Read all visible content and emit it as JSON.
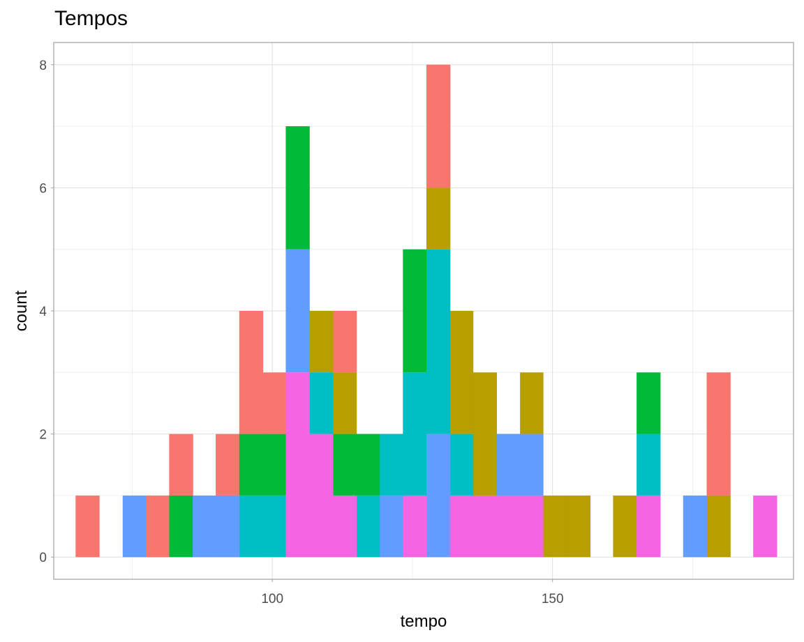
{
  "chart_data": {
    "type": "bar",
    "title": "Tempos",
    "xlabel": "tempo",
    "ylabel": "count",
    "xlim": [
      61,
      193
    ],
    "ylim": [
      -0.36,
      8.36
    ],
    "x_ticks": [
      100,
      150
    ],
    "y_ticks": [
      0,
      2,
      4,
      6,
      8
    ],
    "x_minor_ticks": [
      75,
      125,
      175
    ],
    "y_minor_ticks": [
      1,
      3,
      5,
      7
    ],
    "grid": true,
    "legend": "none",
    "bin_width": 4.17,
    "series": [
      {
        "color": "#F8766D",
        "bars": [
          {
            "x0": 64.9,
            "x1": 69.1,
            "y0": 0,
            "y1": 1
          },
          {
            "x0": 77.4,
            "x1": 81.6,
            "y0": 0,
            "y1": 1
          },
          {
            "x0": 81.6,
            "x1": 85.8,
            "y0": 1,
            "y1": 2
          },
          {
            "x0": 89.9,
            "x1": 94.1,
            "y0": 1,
            "y1": 2
          },
          {
            "x0": 94.1,
            "x1": 98.3,
            "y0": 2,
            "y1": 4
          },
          {
            "x0": 98.3,
            "x1": 102.4,
            "y0": 2,
            "y1": 3
          },
          {
            "x0": 110.8,
            "x1": 115.0,
            "y0": 3,
            "y1": 4
          },
          {
            "x0": 127.5,
            "x1": 131.7,
            "y0": 6,
            "y1": 8
          },
          {
            "x0": 177.5,
            "x1": 181.7,
            "y0": 1,
            "y1": 3
          }
        ]
      },
      {
        "color": "#B79F00",
        "bars": [
          {
            "x0": 106.6,
            "x1": 110.8,
            "y0": 3,
            "y1": 4
          },
          {
            "x0": 110.8,
            "x1": 115.0,
            "y0": 2,
            "y1": 3
          },
          {
            "x0": 127.5,
            "x1": 131.7,
            "y0": 5,
            "y1": 6
          },
          {
            "x0": 131.7,
            "x1": 135.8,
            "y0": 2,
            "y1": 4
          },
          {
            "x0": 135.8,
            "x1": 140.0,
            "y0": 1,
            "y1": 3
          },
          {
            "x0": 144.2,
            "x1": 148.3,
            "y0": 2,
            "y1": 3
          },
          {
            "x0": 148.3,
            "x1": 152.5,
            "y0": 0,
            "y1": 1
          },
          {
            "x0": 152.5,
            "x1": 156.7,
            "y0": 0,
            "y1": 1
          },
          {
            "x0": 160.8,
            "x1": 165.0,
            "y0": 0,
            "y1": 1
          },
          {
            "x0": 177.5,
            "x1": 181.7,
            "y0": 0,
            "y1": 1
          }
        ]
      },
      {
        "color": "#00BA38",
        "bars": [
          {
            "x0": 81.6,
            "x1": 85.8,
            "y0": 0,
            "y1": 1
          },
          {
            "x0": 94.1,
            "x1": 98.3,
            "y0": 1,
            "y1": 2
          },
          {
            "x0": 98.3,
            "x1": 102.4,
            "y0": 1,
            "y1": 2
          },
          {
            "x0": 102.4,
            "x1": 106.6,
            "y0": 5,
            "y1": 7
          },
          {
            "x0": 110.8,
            "x1": 115.0,
            "y0": 1,
            "y1": 2
          },
          {
            "x0": 115.0,
            "x1": 119.2,
            "y0": 1,
            "y1": 2
          },
          {
            "x0": 123.3,
            "x1": 127.5,
            "y0": 3,
            "y1": 5
          },
          {
            "x0": 165.0,
            "x1": 169.2,
            "y0": 2,
            "y1": 3
          }
        ]
      },
      {
        "color": "#00BFC4",
        "bars": [
          {
            "x0": 94.1,
            "x1": 98.3,
            "y0": 0,
            "y1": 1
          },
          {
            "x0": 98.3,
            "x1": 102.4,
            "y0": 0,
            "y1": 1
          },
          {
            "x0": 106.6,
            "x1": 110.8,
            "y0": 2,
            "y1": 3
          },
          {
            "x0": 115.0,
            "x1": 119.2,
            "y0": 0,
            "y1": 1
          },
          {
            "x0": 119.2,
            "x1": 123.3,
            "y0": 1,
            "y1": 2
          },
          {
            "x0": 123.3,
            "x1": 127.5,
            "y0": 1,
            "y1": 3
          },
          {
            "x0": 127.5,
            "x1": 131.7,
            "y0": 2,
            "y1": 5
          },
          {
            "x0": 131.7,
            "x1": 135.8,
            "y0": 1,
            "y1": 2
          },
          {
            "x0": 165.0,
            "x1": 169.2,
            "y0": 1,
            "y1": 2
          }
        ]
      },
      {
        "color": "#619CFF",
        "bars": [
          {
            "x0": 73.3,
            "x1": 77.4,
            "y0": 0,
            "y1": 1
          },
          {
            "x0": 85.8,
            "x1": 89.9,
            "y0": 0,
            "y1": 1
          },
          {
            "x0": 89.9,
            "x1": 94.1,
            "y0": 0,
            "y1": 1
          },
          {
            "x0": 102.4,
            "x1": 106.6,
            "y0": 3,
            "y1": 5
          },
          {
            "x0": 119.2,
            "x1": 123.3,
            "y0": 0,
            "y1": 1
          },
          {
            "x0": 127.5,
            "x1": 131.7,
            "y0": 0,
            "y1": 2
          },
          {
            "x0": 140.0,
            "x1": 144.2,
            "y0": 1,
            "y1": 2
          },
          {
            "x0": 144.2,
            "x1": 148.3,
            "y0": 1,
            "y1": 2
          },
          {
            "x0": 173.3,
            "x1": 177.5,
            "y0": 0,
            "y1": 1
          }
        ]
      },
      {
        "color": "#F564E3",
        "bars": [
          {
            "x0": 102.4,
            "x1": 106.6,
            "y0": 0,
            "y1": 3
          },
          {
            "x0": 106.6,
            "x1": 110.8,
            "y0": 0,
            "y1": 2
          },
          {
            "x0": 110.8,
            "x1": 115.0,
            "y0": 0,
            "y1": 1
          },
          {
            "x0": 123.3,
            "x1": 127.5,
            "y0": 0,
            "y1": 1
          },
          {
            "x0": 131.7,
            "x1": 135.8,
            "y0": 0,
            "y1": 1
          },
          {
            "x0": 135.8,
            "x1": 140.0,
            "y0": 0,
            "y1": 1
          },
          {
            "x0": 140.0,
            "x1": 144.2,
            "y0": 0,
            "y1": 1
          },
          {
            "x0": 144.2,
            "x1": 148.3,
            "y0": 0,
            "y1": 1
          },
          {
            "x0": 165.0,
            "x1": 169.2,
            "y0": 0,
            "y1": 1
          },
          {
            "x0": 185.8,
            "x1": 190.0,
            "y0": 0,
            "y1": 1
          }
        ]
      }
    ]
  }
}
